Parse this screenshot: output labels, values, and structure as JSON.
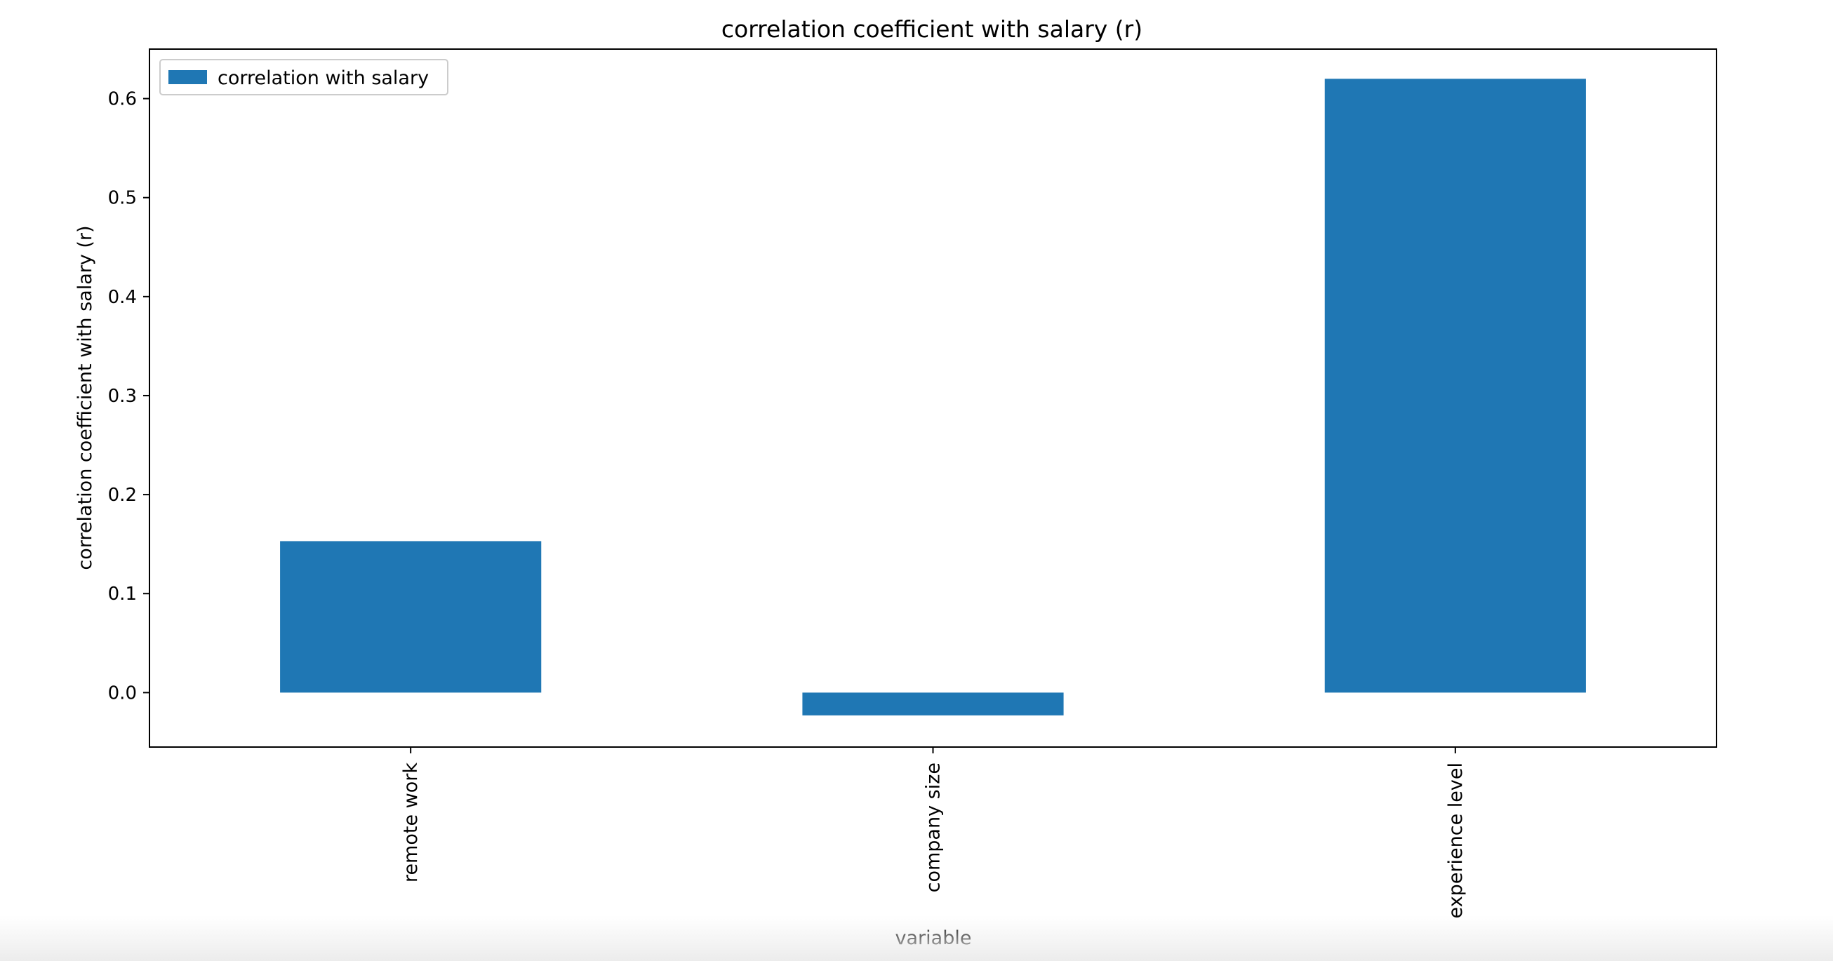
{
  "chart_data": {
    "type": "bar",
    "title": "correlation coefficient with salary (r)",
    "xlabel": "variable",
    "ylabel": "correlation coefficient with salary (r)",
    "categories": [
      "remote work",
      "company size",
      "experience level"
    ],
    "series": [
      {
        "name": "correlation with salary",
        "values": [
          0.153,
          -0.023,
          0.62
        ]
      }
    ],
    "ylim": [
      -0.055,
      0.65
    ],
    "yticks": [
      "0.0",
      "0.1",
      "0.2",
      "0.3",
      "0.4",
      "0.5",
      "0.6"
    ],
    "grid": false,
    "legend": "top-left",
    "bar_color": "#1f77b4"
  }
}
